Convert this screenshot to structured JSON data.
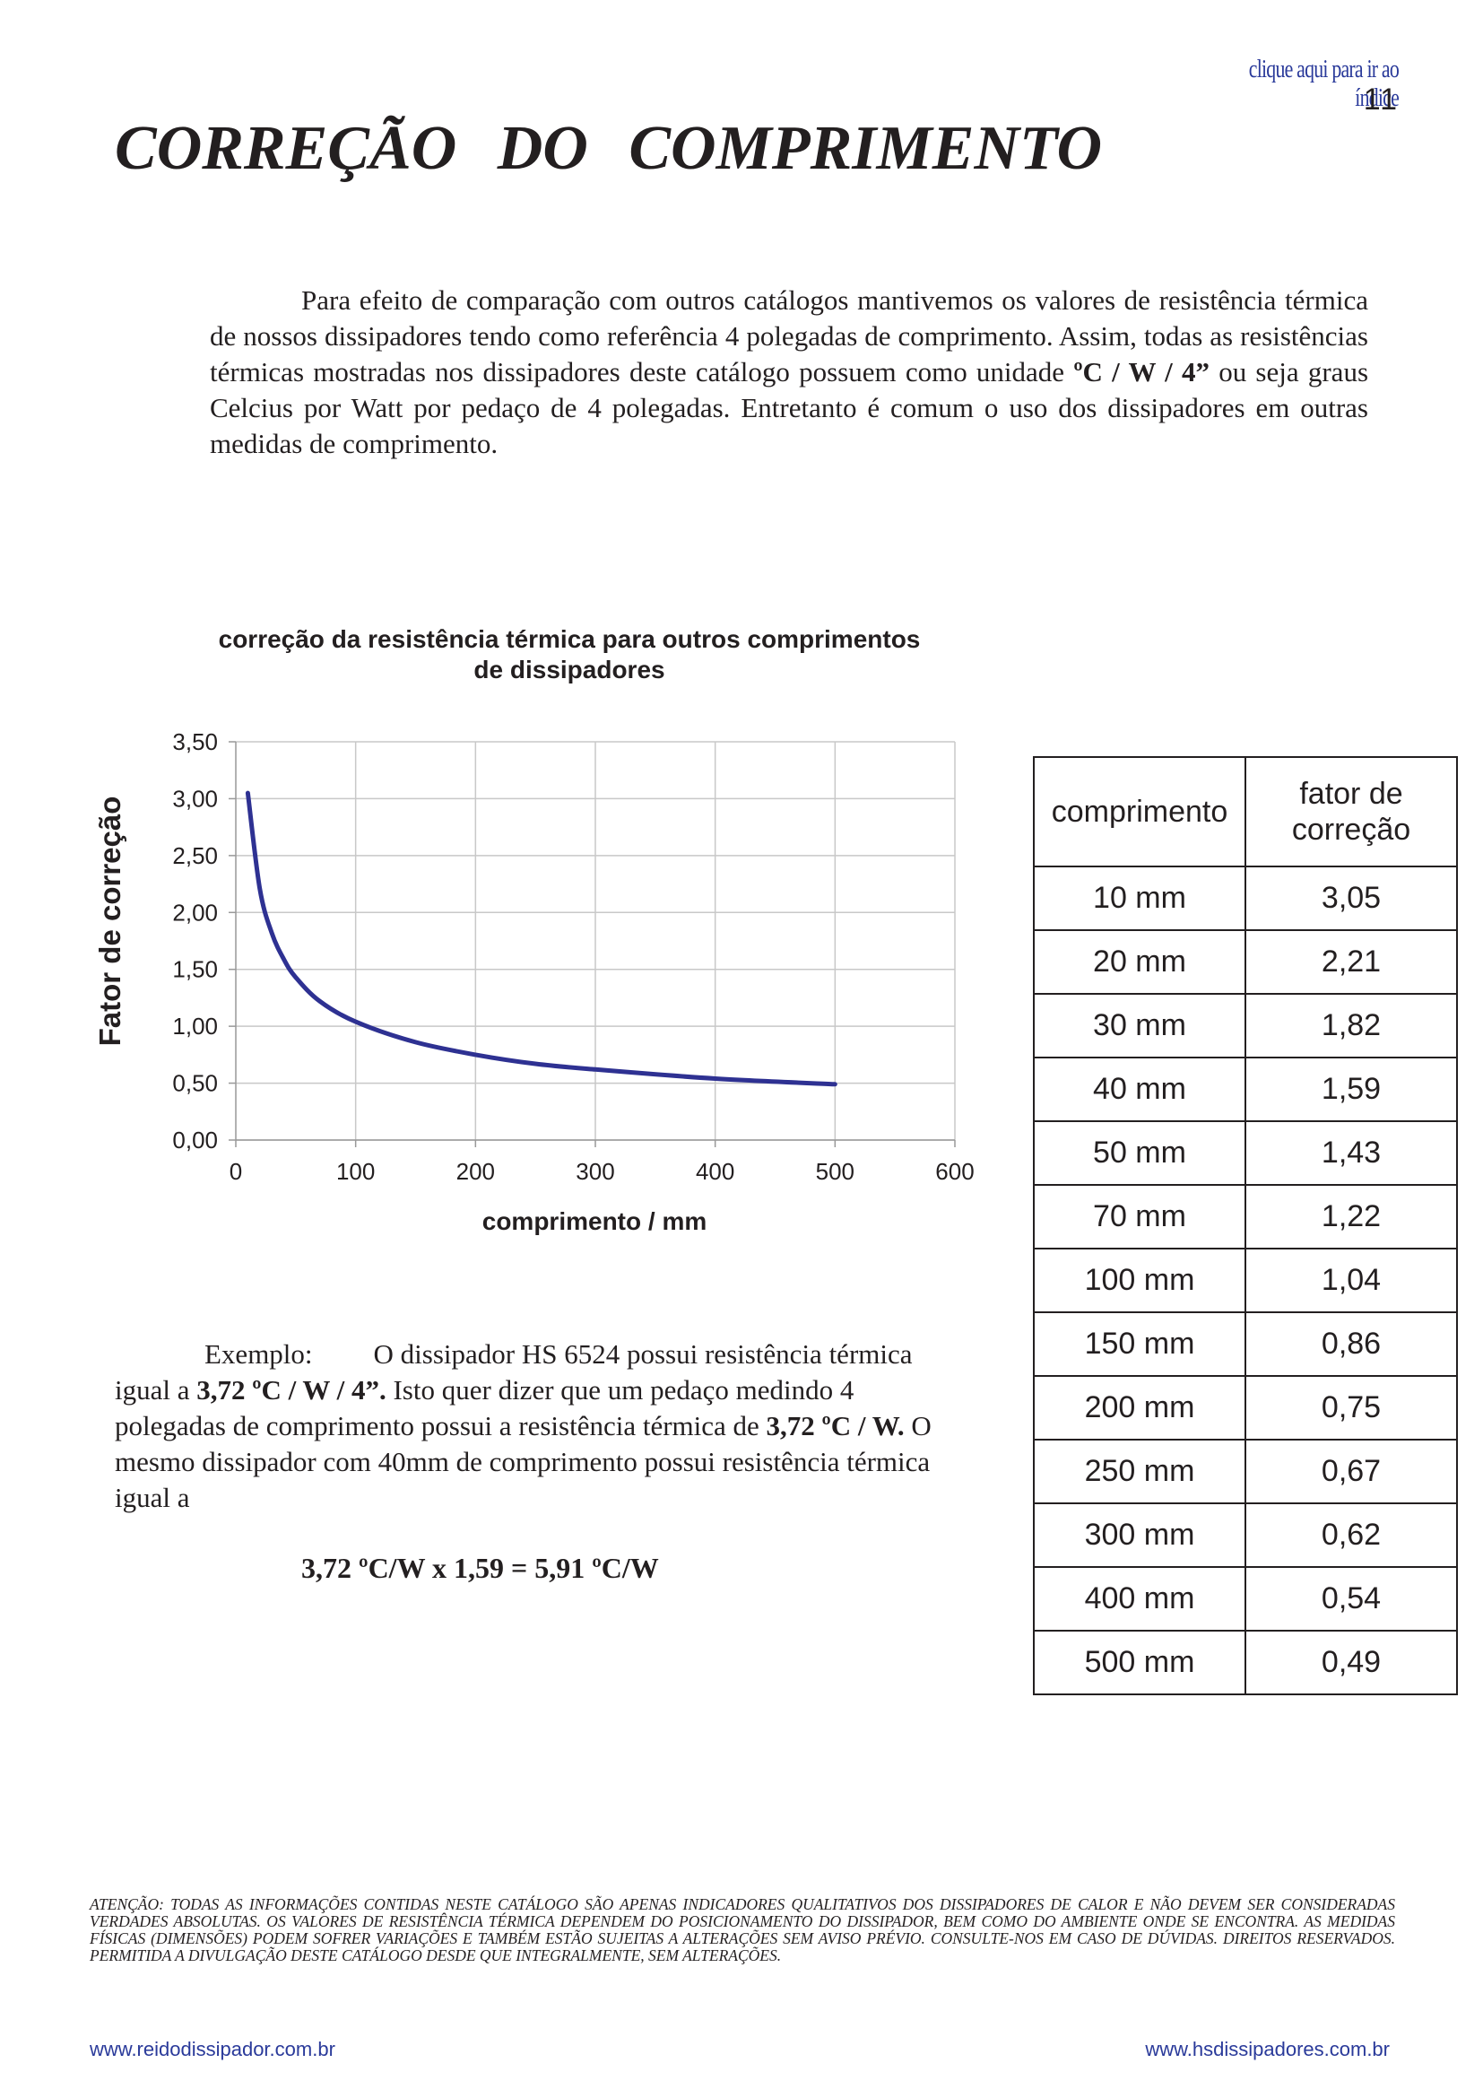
{
  "header": {
    "index_link": "clique aqui para ir ao índice",
    "page_number": "11"
  },
  "title": "CORREÇÃO DO COMPRIMENTO",
  "intro": {
    "part1": "Para efeito de comparação com outros catálogos mantivemos os valores de resistência térmica de nossos dissipadores tendo como referência 4 polegadas de comprimento. Assim, todas as resistências térmicas mostradas nos dissipadores deste catálogo possuem como unidade ",
    "unit": "ºC / W / 4”",
    "part2": " ou seja graus Celcius por Watt por pedaço de 4 polegadas. Entretanto é comum o uso dos dissipadores em outras medidas de comprimento."
  },
  "chart_data": {
    "type": "line",
    "title": "correção da resistência térmica para outros comprimentos de dissipadores",
    "xlabel": "comprimento / mm",
    "ylabel": "Fator de correção",
    "xlim": [
      0,
      600
    ],
    "ylim": [
      0,
      3.5
    ],
    "x_ticks": [
      "0",
      "100",
      "200",
      "300",
      "400",
      "500",
      "600"
    ],
    "y_ticks": [
      "0,00",
      "0,50",
      "1,00",
      "1,50",
      "2,00",
      "2,50",
      "3,00",
      "3,50"
    ],
    "grid": true,
    "legend": "none",
    "line_color": "#2e3192",
    "series": [
      {
        "x": [
          10,
          20,
          30,
          40,
          50,
          70,
          100,
          150,
          200,
          250,
          300,
          400,
          500
        ],
        "y": [
          3.05,
          2.21,
          1.82,
          1.59,
          1.43,
          1.22,
          1.04,
          0.86,
          0.75,
          0.67,
          0.62,
          0.54,
          0.49
        ]
      }
    ]
  },
  "table": {
    "headers": [
      "comprimento",
      "fator de correção"
    ],
    "rows": [
      [
        "10 mm",
        "3,05"
      ],
      [
        "20 mm",
        "2,21"
      ],
      [
        "30 mm",
        "1,82"
      ],
      [
        "40 mm",
        "1,59"
      ],
      [
        "50 mm",
        "1,43"
      ],
      [
        "70 mm",
        "1,22"
      ],
      [
        "100 mm",
        "1,04"
      ],
      [
        "150 mm",
        "0,86"
      ],
      [
        "200 mm",
        "0,75"
      ],
      [
        "250 mm",
        "0,67"
      ],
      [
        "300 mm",
        "0,62"
      ],
      [
        "400 mm",
        "0,54"
      ],
      [
        "500 mm",
        "0,49"
      ]
    ]
  },
  "example": {
    "label": "Exemplo:",
    "s1": "O dissipador HS 6524 possui resistência térmica igual a ",
    "b1": "3,72 ºC / W / 4”.",
    "s2": " Isto quer dizer que um pedaço medindo 4 polegadas de comprimento possui a resistência térmica de ",
    "b2": "3,72 ºC / W.",
    "s3": " O mesmo dissipador com 40mm de comprimento possui resistência térmica igual a",
    "formula": "3,72 ºC/W x 1,59 = 5,91 ºC/W"
  },
  "disclaimer": "ATENÇÃO: TODAS AS INFORMAÇÕES CONTIDAS NESTE CATÁLOGO SÃO APENAS INDICADORES QUALITATIVOS DOS DISSIPADORES DE CALOR E NÃO DEVEM SER CONSIDERADAS VERDADES ABSOLUTAS. OS VALORES DE RESISTÊNCIA TÉRMICA DEPENDEM DO POSICIONAMENTO DO DISSIPADOR, BEM COMO DO AMBIENTE ONDE SE ENCONTRA. AS MEDIDAS FÍSICAS (DIMENSÕES) PODEM SOFRER VARIAÇÕES E TAMBÉM ESTÃO SUJEITAS A ALTERAÇÕES SEM AVISO PRÉVIO. CONSULTE-NOS EM CASO DE DÚVIDAS. DIREITOS RESERVADOS. PERMITIDA A DIVULGAÇÃO DESTE CATÁLOGO DESDE QUE INTEGRALMENTE, SEM ALTERAÇÕES.",
  "footer": {
    "left": "www.reidodissipador.com.br",
    "right": "www.hsdissipadores.com.br"
  }
}
